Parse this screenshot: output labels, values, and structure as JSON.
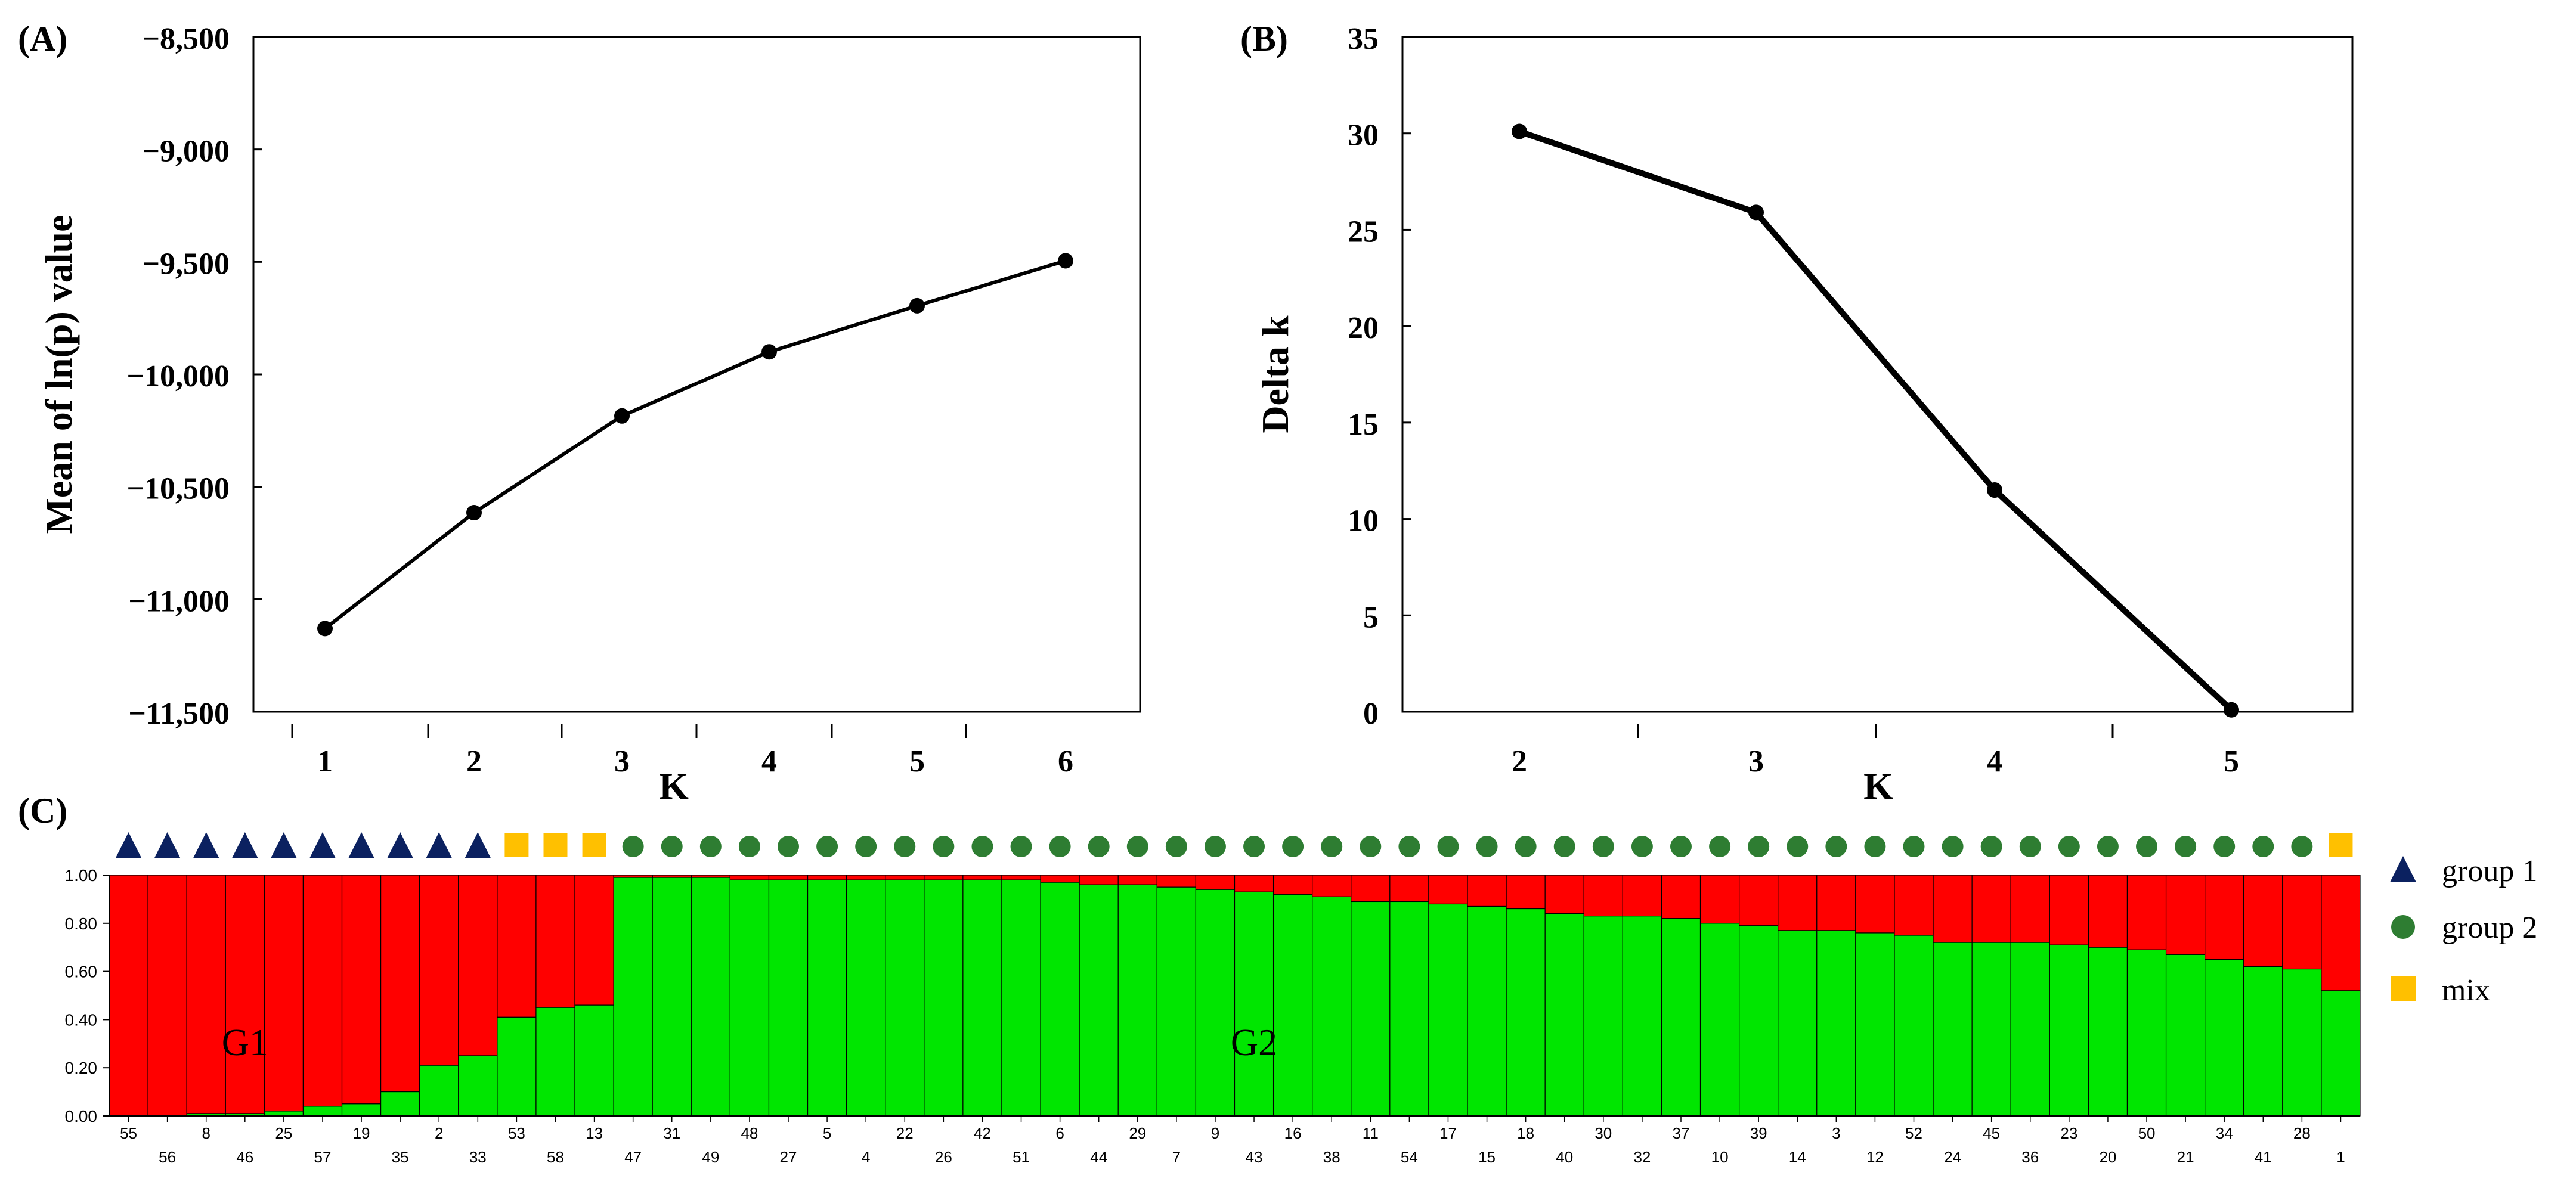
{
  "panels": {
    "a": {
      "label": "(A)"
    },
    "b": {
      "label": "(B)"
    },
    "c": {
      "label": "(C)"
    }
  },
  "chart_data": [
    {
      "type": "line",
      "panel": "(A)",
      "xlabel": "K",
      "ylabel": "Mean of ln(p) value",
      "x": [
        1,
        2,
        3,
        4,
        5,
        6
      ],
      "y": [
        -11130,
        -10615,
        -10185,
        -9900,
        -9695,
        -9495
      ],
      "ylim": [
        -11500,
        -8500
      ],
      "yticks": [
        "-8,500",
        "-9,000",
        "-9,500",
        "-10,000",
        "-10,500",
        "-11,000",
        "-11,500"
      ],
      "xticks": [
        "1",
        "2",
        "3",
        "4",
        "5",
        "6"
      ],
      "grid": false
    },
    {
      "type": "line",
      "panel": "(B)",
      "xlabel": "K",
      "ylabel": "Delta k",
      "x": [
        2,
        3,
        4,
        5
      ],
      "y": [
        30.1,
        25.9,
        11.5,
        0.1
      ],
      "ylim": [
        0,
        35
      ],
      "yticks": [
        "35",
        "30",
        "25",
        "20",
        "15",
        "10",
        "5",
        "0"
      ],
      "xticks": [
        "2",
        "3",
        "4",
        "5"
      ],
      "grid": false
    },
    {
      "type": "bar",
      "panel": "(C)",
      "stacked": true,
      "ylim": [
        0,
        1
      ],
      "yticks": [
        "1.00",
        "0.80",
        "0.60",
        "0.40",
        "0.20",
        "0.00"
      ],
      "categories": [
        "55",
        "56",
        "8",
        "46",
        "25",
        "57",
        "19",
        "35",
        "2",
        "33",
        "53",
        "58",
        "13",
        "47",
        "31",
        "49",
        "48",
        "27",
        "5",
        "4",
        "22",
        "26",
        "42",
        "51",
        "6",
        "44",
        "29",
        "7",
        "9",
        "43",
        "16",
        "38",
        "11",
        "54",
        "17",
        "15",
        "18",
        "40",
        "30",
        "32",
        "37",
        "10",
        "39",
        "14",
        "3",
        "12",
        "52",
        "24",
        "45",
        "36",
        "23",
        "20",
        "50",
        "21",
        "34",
        "41",
        "28",
        "1"
      ],
      "series": [
        {
          "color": "#00e600",
          "values": [
            0.0,
            0.0,
            0.01,
            0.01,
            0.02,
            0.04,
            0.05,
            0.1,
            0.21,
            0.25,
            0.41,
            0.45,
            0.46,
            0.99,
            0.99,
            0.99,
            0.98,
            0.98,
            0.98,
            0.98,
            0.98,
            0.98,
            0.98,
            0.98,
            0.97,
            0.96,
            0.96,
            0.95,
            0.94,
            0.93,
            0.92,
            0.91,
            0.89,
            0.89,
            0.88,
            0.87,
            0.86,
            0.84,
            0.83,
            0.83,
            0.82,
            0.8,
            0.79,
            0.77,
            0.77,
            0.76,
            0.75,
            0.72,
            0.72,
            0.72,
            0.71,
            0.7,
            0.69,
            0.67,
            0.65,
            0.62,
            0.61,
            0.52
          ]
        },
        {
          "color": "#ff0000",
          "values": [
            1.0,
            1.0,
            0.99,
            0.99,
            0.98,
            0.96,
            0.95,
            0.9,
            0.79,
            0.75,
            0.59,
            0.55,
            0.54,
            0.01,
            0.01,
            0.01,
            0.02,
            0.02,
            0.02,
            0.02,
            0.02,
            0.02,
            0.02,
            0.02,
            0.03,
            0.04,
            0.04,
            0.05,
            0.06,
            0.07,
            0.08,
            0.09,
            0.11,
            0.11,
            0.12,
            0.13,
            0.14,
            0.16,
            0.17,
            0.17,
            0.18,
            0.2,
            0.21,
            0.23,
            0.23,
            0.24,
            0.25,
            0.28,
            0.28,
            0.28,
            0.29,
            0.3,
            0.31,
            0.33,
            0.35,
            0.38,
            0.39,
            0.48
          ]
        }
      ],
      "groups": [
        "group 1",
        "group 1",
        "group 1",
        "group 1",
        "group 1",
        "group 1",
        "group 1",
        "group 1",
        "group 1",
        "group 1",
        "mix",
        "mix",
        "mix",
        "group 2",
        "group 2",
        "group 2",
        "group 2",
        "group 2",
        "group 2",
        "group 2",
        "group 2",
        "group 2",
        "group 2",
        "group 2",
        "group 2",
        "group 2",
        "group 2",
        "group 2",
        "group 2",
        "group 2",
        "group 2",
        "group 2",
        "group 2",
        "group 2",
        "group 2",
        "group 2",
        "group 2",
        "group 2",
        "group 2",
        "group 2",
        "group 2",
        "group 2",
        "group 2",
        "group 2",
        "group 2",
        "group 2",
        "group 2",
        "group 2",
        "group 2",
        "group 2",
        "group 2",
        "group 2",
        "group 2",
        "group 2",
        "group 2",
        "group 2",
        "group 2",
        "mix"
      ],
      "annotations": [
        {
          "text": "G1",
          "index": 3
        },
        {
          "text": "G2",
          "index": 29
        }
      ],
      "legend": {
        "position": "right",
        "items": [
          {
            "label": "group 1",
            "shape": "triangle",
            "color": "#0b2160"
          },
          {
            "label": "group 2",
            "shape": "circle",
            "color": "#2e7d32"
          },
          {
            "label": "mix",
            "shape": "square",
            "color": "#ffc000"
          }
        ]
      }
    }
  ]
}
